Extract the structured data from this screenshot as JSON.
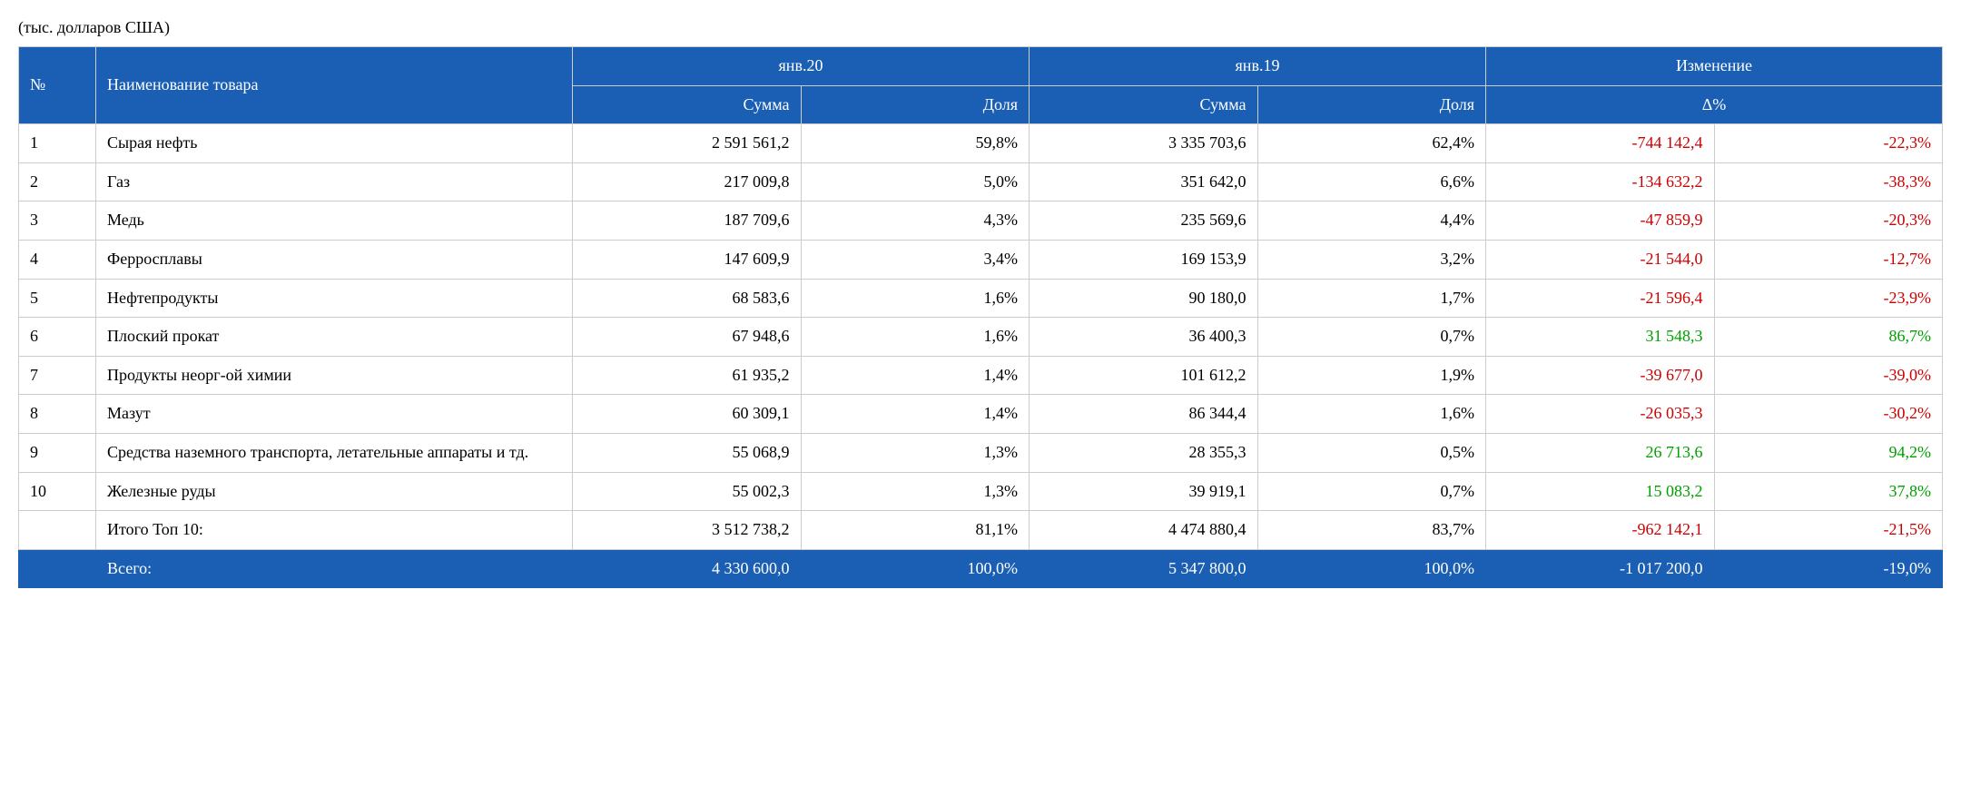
{
  "chart_data": {
    "type": "table",
    "subtitle": "(тыс. долларов США)",
    "header_rows": [
      [
        {
          "text": "№",
          "rowspan": 2,
          "class": "col-number"
        },
        {
          "text": "Наименование товара",
          "rowspan": 2,
          "class": "col-name"
        },
        {
          "text": "янв.20",
          "colspan": 2
        },
        {
          "text": "янв.19",
          "colspan": 2
        },
        {
          "text": "Изменение",
          "colspan": 2
        }
      ],
      [
        {
          "text": "Сумма",
          "class": "col-sum"
        },
        {
          "text": "Доля",
          "class": "col-share"
        },
        {
          "text": "Сумма",
          "class": "col-sum"
        },
        {
          "text": "Доля",
          "class": "col-share"
        },
        {
          "text": "Δ%",
          "colspan": 2,
          "class": "col-delta-header"
        }
      ]
    ],
    "body_rows": [
      {
        "number": "1",
        "name": "Сырая нефть",
        "sum20": "2 591 561,2",
        "share20": "59,8%",
        "sum19": "3 335 703,6",
        "share19": "62,4%",
        "delta_abs": "-744 142,4",
        "delta_pct": "-22,3%",
        "color": "negative"
      },
      {
        "number": "2",
        "name": "Газ",
        "sum20": "217 009,8",
        "share20": "5,0%",
        "sum19": "351 642,0",
        "share19": "6,6%",
        "delta_abs": "-134 632,2",
        "delta_pct": "-38,3%",
        "color": "negative"
      },
      {
        "number": "3",
        "name": "Медь",
        "sum20": "187 709,6",
        "share20": "4,3%",
        "sum19": "235 569,6",
        "share19": "4,4%",
        "delta_abs": "-47 859,9",
        "delta_pct": "-20,3%",
        "color": "negative"
      },
      {
        "number": "4",
        "name": "Ферросплавы",
        "sum20": "147 609,9",
        "share20": "3,4%",
        "sum19": "169 153,9",
        "share19": "3,2%",
        "delta_abs": "-21 544,0",
        "delta_pct": "-12,7%",
        "color": "negative"
      },
      {
        "number": "5",
        "name": "Нефтепродукты",
        "sum20": "68 583,6",
        "share20": "1,6%",
        "sum19": "90 180,0",
        "share19": "1,7%",
        "delta_abs": "-21 596,4",
        "delta_pct": "-23,9%",
        "color": "negative"
      },
      {
        "number": "6",
        "name": "Плоский прокат",
        "sum20": "67 948,6",
        "share20": "1,6%",
        "sum19": "36 400,3",
        "share19": "0,7%",
        "delta_abs": "31 548,3",
        "delta_pct": "86,7%",
        "color": "positive"
      },
      {
        "number": "7",
        "name": "Продукты неорг-ой химии",
        "sum20": "61 935,2",
        "share20": "1,4%",
        "sum19": "101 612,2",
        "share19": "1,9%",
        "delta_abs": "-39 677,0",
        "delta_pct": "-39,0%",
        "color": "negative"
      },
      {
        "number": "8",
        "name": "Мазут",
        "sum20": "60 309,1",
        "share20": "1,4%",
        "sum19": "86 344,4",
        "share19": "1,6%",
        "delta_abs": "-26 035,3",
        "delta_pct": "-30,2%",
        "color": "negative"
      },
      {
        "number": "9",
        "name": "Средства наземного транспорта, летательные аппараты и тд.",
        "sum20": "55 068,9",
        "share20": "1,3%",
        "sum19": "28 355,3",
        "share19": "0,5%",
        "delta_abs": "26 713,6",
        "delta_pct": "94,2%",
        "color": "positive"
      },
      {
        "number": "10",
        "name": "Железные руды",
        "sum20": "55 002,3",
        "share20": "1,3%",
        "sum19": "39 919,1",
        "share19": "0,7%",
        "delta_abs": "15 083,2",
        "delta_pct": "37,8%",
        "color": "positive"
      }
    ],
    "total_top10": {
      "name": "Итого Топ 10:",
      "sum20": "3 512 738,2",
      "share20": "81,1%",
      "sum19": "4 474 880,4",
      "share19": "83,7%",
      "delta_abs": "-962 142,1",
      "delta_pct": "-21,5%",
      "color": "negative"
    },
    "total_all": {
      "name": "Всего:",
      "sum20": "4 330 600,0",
      "share20": "100,0%",
      "sum19": "5 347 800,0",
      "share19": "100,0%",
      "delta_abs": "-1 017 200,0",
      "delta_pct": "-19,0%"
    }
  },
  "colors": {
    "header_bg": "#1a5fb4",
    "header_text": "#ffffff",
    "total_bg": "#1a5fb4",
    "total_text": "#ffffff",
    "positive": "#00a000",
    "negative": "#cc0000"
  }
}
